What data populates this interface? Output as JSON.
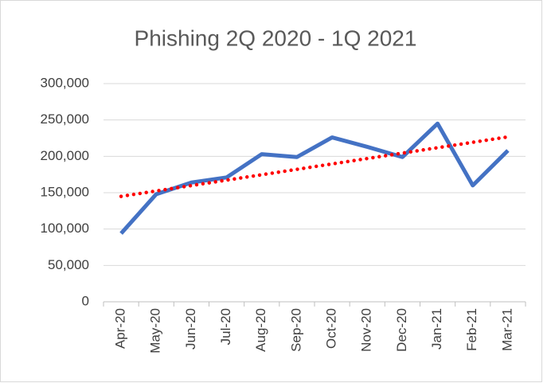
{
  "chart_data": {
    "type": "line",
    "title": "Phishing 2Q 2020 - 1Q 2021",
    "categories": [
      "Apr-20",
      "May-20",
      "Jun-20",
      "Jul-20",
      "Aug-20",
      "Sep-20",
      "Oct-20",
      "Nov-20",
      "Dec-20",
      "Jan-21",
      "Feb-21",
      "Mar-21"
    ],
    "series": [
      {
        "color": "#4472c4",
        "values": [
          94000,
          148000,
          164000,
          171000,
          203000,
          199000,
          226000,
          213000,
          199000,
          245000,
          160000,
          208000
        ]
      }
    ],
    "trendline": {
      "type": "linear",
      "color": "#ff0000",
      "style": "dotted"
    },
    "ylim": [
      0,
      300000
    ],
    "yticks": [
      0,
      {
        "value": 50000,
        "label": "50,000"
      },
      {
        "value": 100000,
        "label": "100,000"
      },
      {
        "value": 150000,
        "label": "150,000"
      },
      {
        "value": 200000,
        "label": "200,000"
      },
      {
        "value": 250000,
        "label": "250,000"
      },
      {
        "value": 300000,
        "label": "300,000"
      }
    ],
    "grid": true
  }
}
